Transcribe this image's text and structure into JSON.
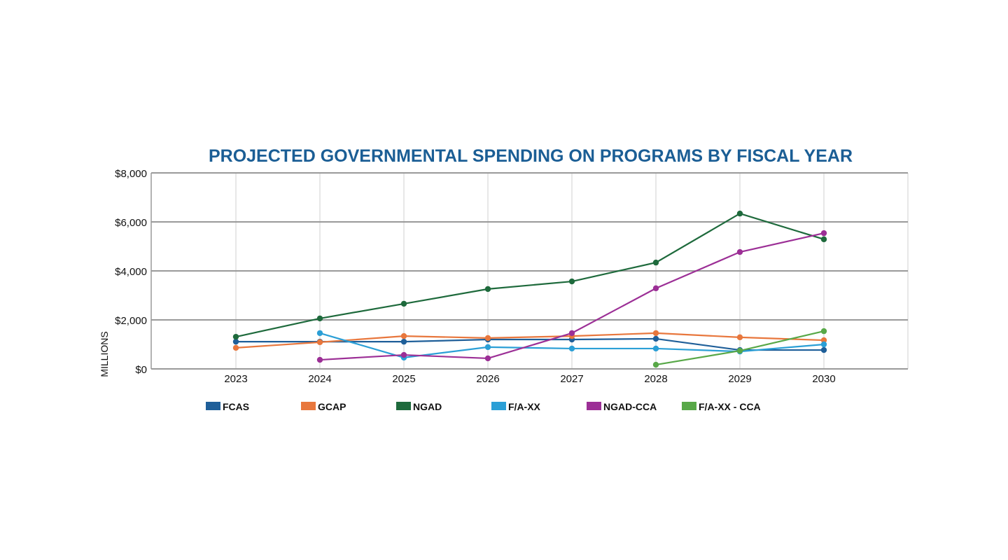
{
  "chart_data": {
    "type": "line",
    "title": "PROJECTED GOVERNMENTAL SPENDING ON PROGRAMS BY FISCAL YEAR",
    "xlabel": "",
    "ylabel": "MILLIONS",
    "x": [
      "2023",
      "2024",
      "2025",
      "2026",
      "2027",
      "2028",
      "2029",
      "2030"
    ],
    "ylim": [
      0,
      8000
    ],
    "yticks": [
      0,
      2000,
      4000,
      6000,
      8000
    ],
    "ytick_labels": [
      "$0",
      "$2,000",
      "$4,000",
      "$6,000",
      "$8,000"
    ],
    "grid": true,
    "legend_position": "bottom",
    "series": [
      {
        "name": "FCAS",
        "color": "#1f5f99",
        "values": [
          1110,
          1110,
          1110,
          1200,
          1200,
          1230,
          770,
          770
        ]
      },
      {
        "name": "GCAP",
        "color": "#e8773d",
        "values": [
          860,
          1090,
          1340,
          1260,
          1340,
          1460,
          1290,
          1170
        ]
      },
      {
        "name": "NGAD",
        "color": "#1e6a3c",
        "values": [
          1310,
          2060,
          2660,
          3260,
          3570,
          4340,
          6340,
          5290
        ]
      },
      {
        "name": "F/A-XX",
        "color": "#2b9fd6",
        "values": [
          null,
          1460,
          460,
          890,
          830,
          830,
          710,
          1000
        ]
      },
      {
        "name": "NGAD-CCA",
        "color": "#9c2f96",
        "values": [
          null,
          370,
          570,
          430,
          1460,
          3290,
          4770,
          5540
        ]
      },
      {
        "name": "F/A-XX - CCA",
        "color": "#58a848",
        "values": [
          null,
          null,
          null,
          null,
          null,
          170,
          740,
          1540
        ]
      }
    ]
  }
}
